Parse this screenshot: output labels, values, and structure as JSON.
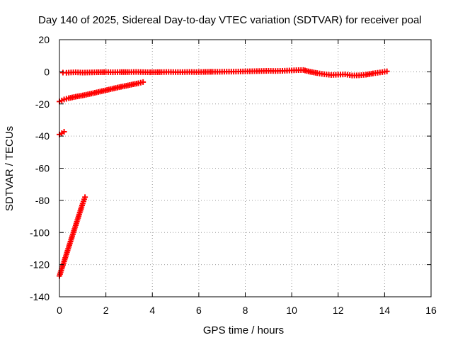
{
  "chart_data": {
    "type": "scatter",
    "title": "Day 140 of 2025, Sidereal Day-to-day VTEC variation (SDTVAR) for receiver poal",
    "xlabel": "GPS time / hours",
    "ylabel": "SDTVAR / TECUs",
    "xlim": [
      0,
      16
    ],
    "ylim": [
      -140,
      20
    ],
    "xticks": [
      0,
      2,
      4,
      6,
      8,
      10,
      12,
      14,
      16
    ],
    "yticks": [
      20,
      0,
      -20,
      -40,
      -60,
      -80,
      -100,
      -120,
      -140
    ],
    "grid": true,
    "grid_style": "dotted",
    "marker": "plus",
    "series_color": "#ff0000",
    "series": [
      {
        "points": [
          [
            0.15,
            -0.5
          ],
          [
            0.3,
            -0.6
          ],
          [
            0.5,
            -0.4
          ],
          [
            0.7,
            -0.3
          ],
          [
            1.0,
            -0.5
          ],
          [
            1.3,
            -0.4
          ],
          [
            1.6,
            -0.3
          ],
          [
            2.0,
            -0.2
          ],
          [
            2.3,
            -0.3
          ],
          [
            2.6,
            -0.2
          ],
          [
            3.0,
            -0.2
          ],
          [
            3.3,
            -0.1
          ],
          [
            3.6,
            -0.2
          ],
          [
            3.9,
            -0.3
          ],
          [
            4.4,
            -0.2
          ],
          [
            4.7,
            -0.1
          ],
          [
            5.0,
            -0.2
          ],
          [
            5.3,
            -0.2
          ],
          [
            5.6,
            -0.1
          ],
          [
            5.9,
            -0.2
          ],
          [
            6.2,
            -0.1
          ],
          [
            6.6,
            0.0
          ],
          [
            6.9,
            0.0
          ],
          [
            7.2,
            0.1
          ],
          [
            7.5,
            0.1
          ],
          [
            7.8,
            0.2
          ],
          [
            8.1,
            0.3
          ],
          [
            8.4,
            0.4
          ],
          [
            8.7,
            0.5
          ],
          [
            9.0,
            0.6
          ],
          [
            9.3,
            0.5
          ],
          [
            9.6,
            0.6
          ],
          [
            9.9,
            0.8
          ],
          [
            10.2,
            1.0
          ],
          [
            10.5,
            1.1
          ],
          [
            10.8,
            0.0
          ],
          [
            11.1,
            -0.8
          ],
          [
            11.4,
            -1.5
          ],
          [
            11.7,
            -2.0
          ],
          [
            12.0,
            -1.8
          ],
          [
            12.3,
            -1.6
          ],
          [
            12.6,
            -2.3
          ],
          [
            12.9,
            -2.2
          ],
          [
            13.2,
            -1.8
          ],
          [
            13.5,
            -1.0
          ],
          [
            13.8,
            -0.4
          ],
          [
            14.0,
            0.0
          ],
          [
            14.1,
            0.3
          ]
        ]
      },
      {
        "points": [
          [
            0.0,
            -18.5
          ],
          [
            0.2,
            -17.2
          ],
          [
            0.4,
            -16.4
          ],
          [
            0.7,
            -15.5
          ],
          [
            1.0,
            -14.7
          ],
          [
            1.3,
            -13.8
          ],
          [
            1.6,
            -12.8
          ],
          [
            1.9,
            -11.8
          ],
          [
            2.2,
            -10.8
          ],
          [
            2.5,
            -9.8
          ],
          [
            2.8,
            -8.9
          ],
          [
            3.1,
            -8.0
          ],
          [
            3.4,
            -7.1
          ],
          [
            3.6,
            -6.4
          ]
        ]
      },
      {
        "points": [
          [
            0.0,
            -39.0
          ],
          [
            0.1,
            -38.2
          ],
          [
            0.2,
            -37.3
          ]
        ]
      },
      {
        "points": [
          [
            0.0,
            -127.0
          ],
          [
            0.1,
            -122.5
          ],
          [
            0.2,
            -118.0
          ],
          [
            0.3,
            -113.5
          ],
          [
            0.4,
            -109.0
          ],
          [
            0.5,
            -104.5
          ],
          [
            0.6,
            -100.0
          ],
          [
            0.7,
            -95.5
          ],
          [
            0.8,
            -91.0
          ],
          [
            0.9,
            -86.5
          ],
          [
            1.0,
            -82.0
          ],
          [
            1.1,
            -78.0
          ]
        ]
      }
    ]
  }
}
